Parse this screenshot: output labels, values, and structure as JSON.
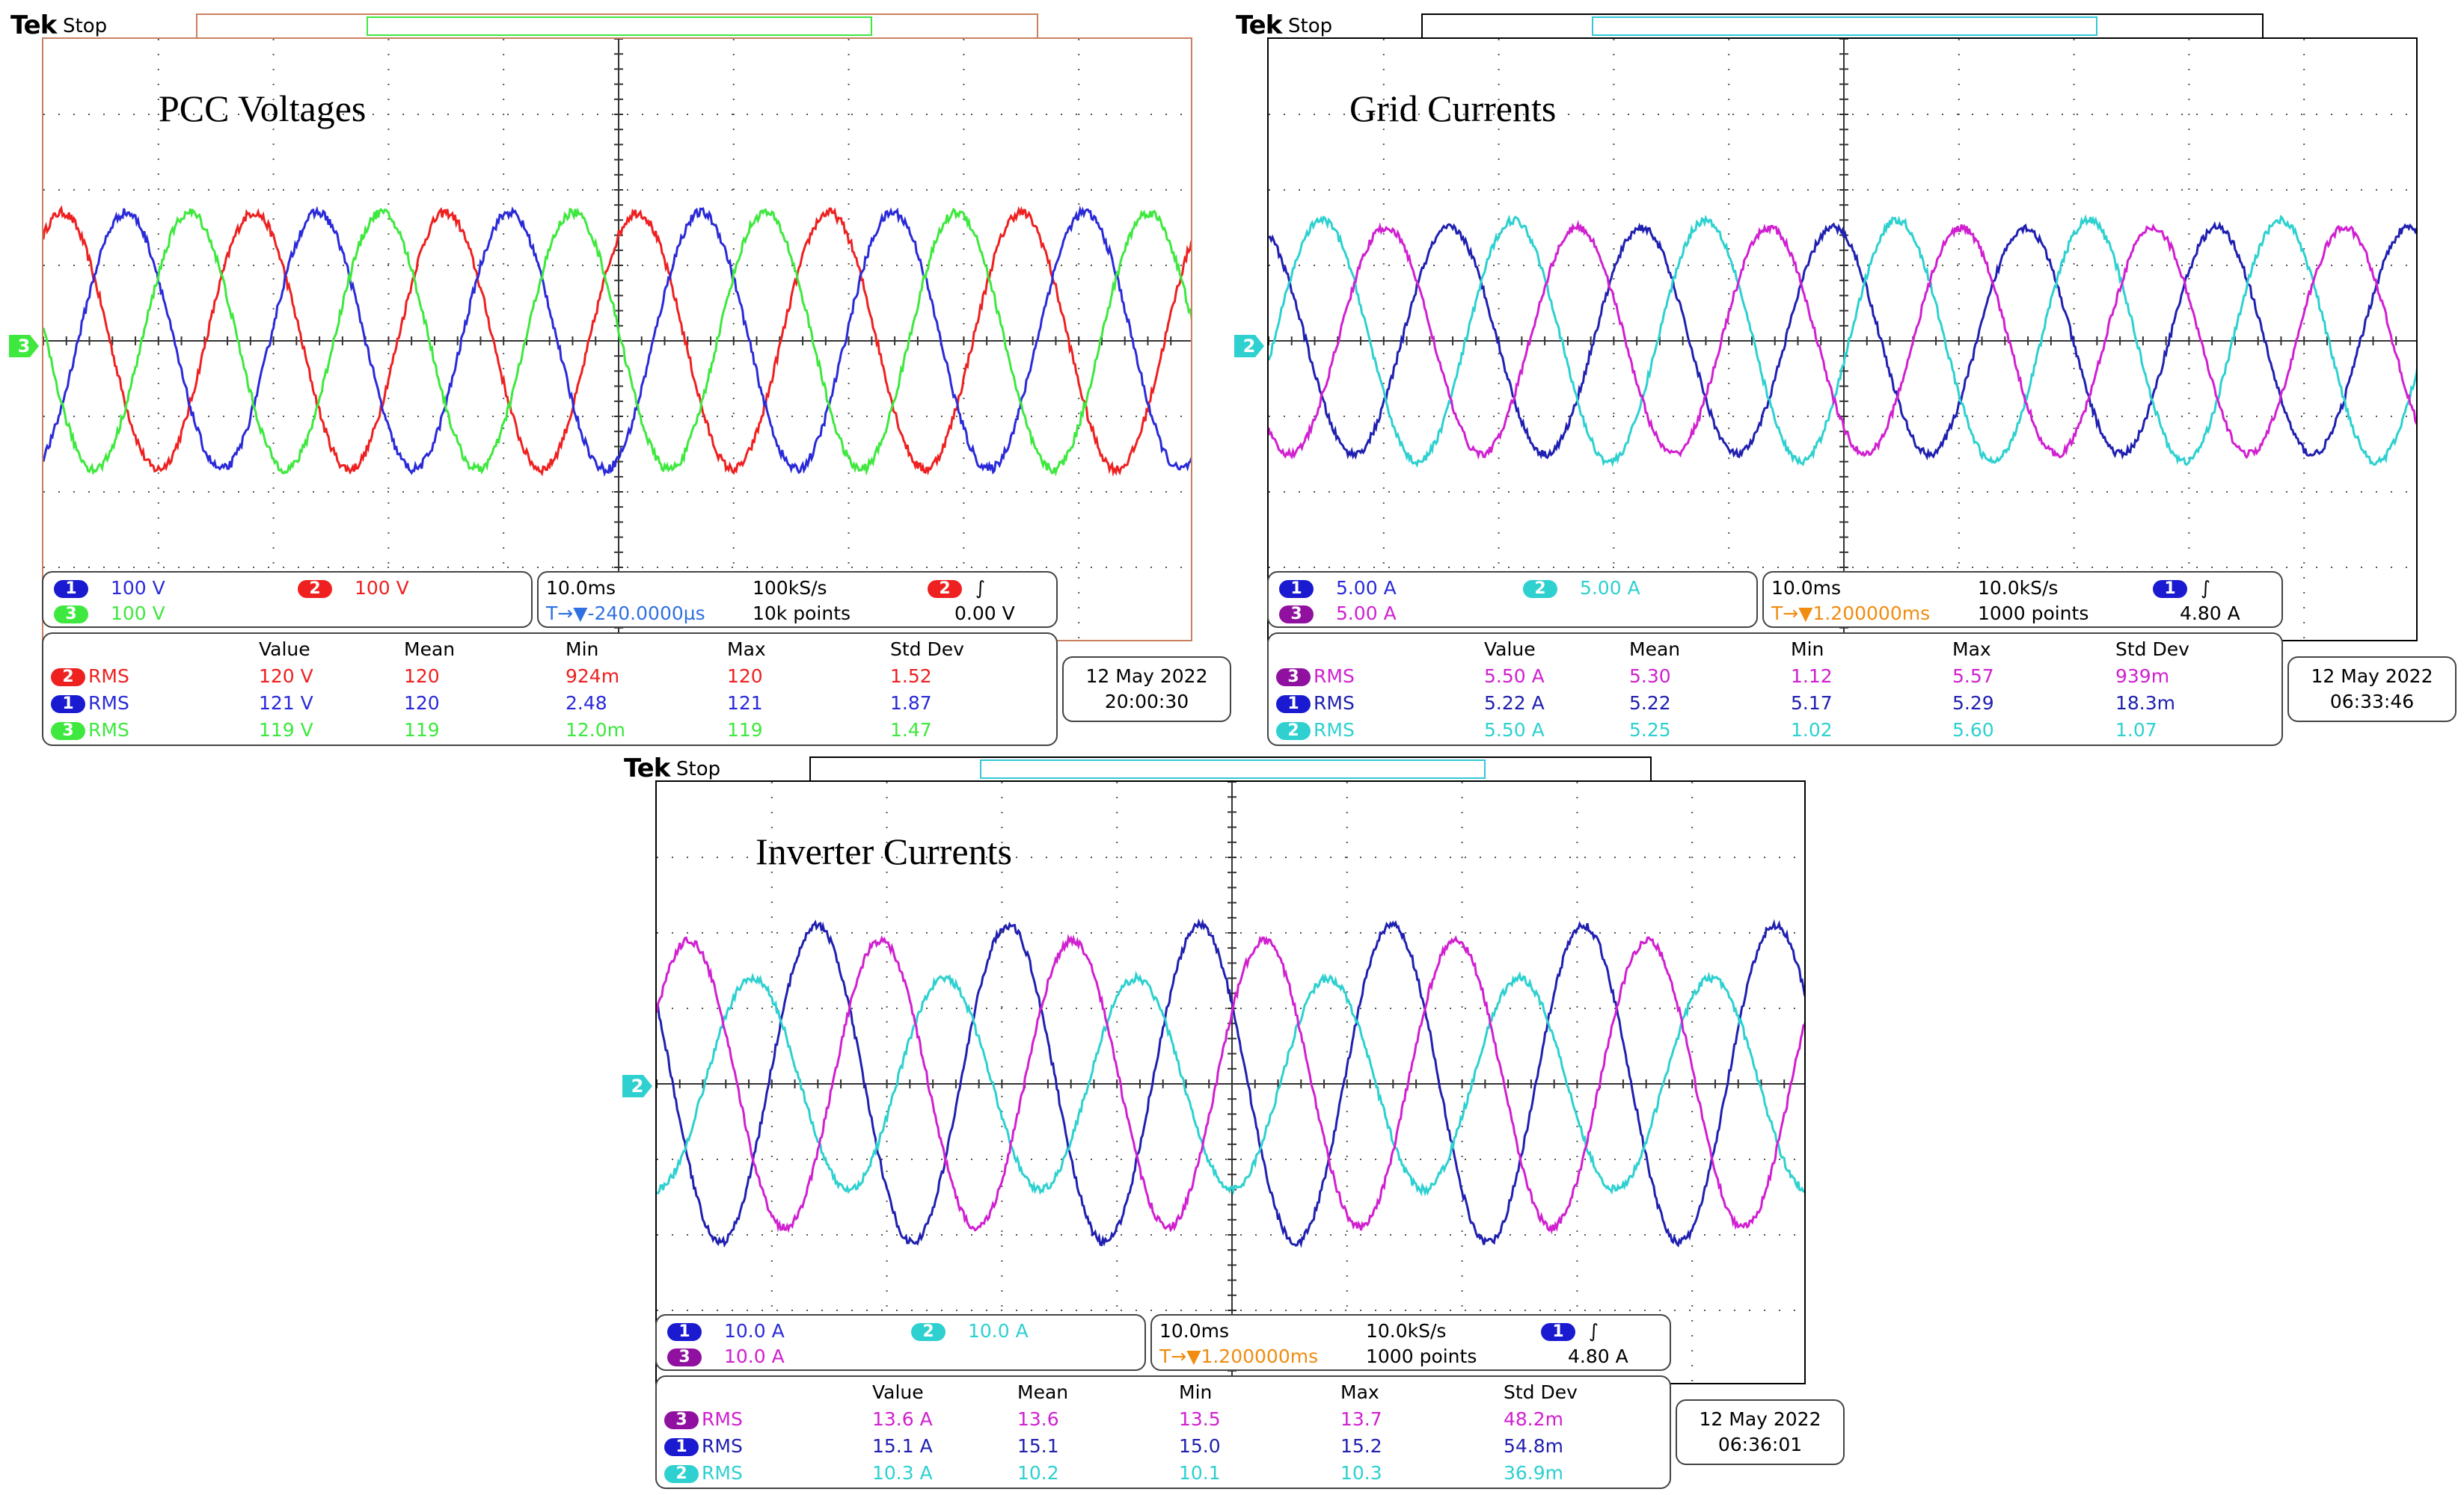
{
  "colors": {
    "ch1": "#2a2ad8",
    "ch1_badge": "#1a1ad0",
    "red": "#ee2020",
    "green": "#3ee83e",
    "cyan": "#2ed0d0",
    "magenta": "#d020d0",
    "navy": "#2020b0",
    "purple_badge": "#9010a0",
    "trigger_blue": "#3070e0",
    "trigger_orange": "#f08c10"
  },
  "scopes": [
    {
      "id": "pcc",
      "brand": "Tek",
      "status": "Stop",
      "title": "PCC Voltages",
      "ground_marker": "3",
      "trigger_marker": "T",
      "channels_line1": [
        {
          "num": "1",
          "scale": "100 V",
          "color": "#2a2ad8",
          "badge": "#1a1ad0"
        },
        {
          "num": "2",
          "scale": "100 V",
          "color": "#ee2020",
          "badge": "#ee2020"
        }
      ],
      "channels_line2": [
        {
          "num": "3",
          "scale": "100 V",
          "color": "#3ee83e",
          "badge": "#3ee83e"
        }
      ],
      "timebase": "10.0ms",
      "sample_rate": "100kS/s",
      "trigger_pos": "T→▼-240.0000µs",
      "record": "10k points",
      "trig_ch": "2",
      "trig_slope": "∫",
      "trig_level": "0.00 V",
      "headers": [
        "Value",
        "Mean",
        "Min",
        "Max",
        "Std Dev"
      ],
      "meas": [
        {
          "ch": "2",
          "label": "RMS",
          "values": [
            "120 V",
            "120",
            "924m",
            "120",
            "1.52"
          ]
        },
        {
          "ch": "1",
          "label": "RMS",
          "values": [
            "121 V",
            "120",
            "2.48",
            "121",
            "1.87"
          ]
        },
        {
          "ch": "3",
          "label": "RMS",
          "values": [
            "119 V",
            "119",
            "12.0m",
            "119",
            "1.47"
          ]
        }
      ],
      "date": "12 May  2022",
      "time": "20:00:30"
    },
    {
      "id": "grid",
      "brand": "Tek",
      "status": "Stop",
      "title": "Grid Currents",
      "ground_marker": "2",
      "trigger_marker": "T",
      "channels_line1": [
        {
          "num": "1",
          "scale": "5.00 A",
          "color": "#2020b0",
          "badge": "#1a1ad0"
        },
        {
          "num": "2",
          "scale": "5.00 A",
          "color": "#2ed0d0",
          "badge": "#2ed0d0"
        }
      ],
      "channels_line2": [
        {
          "num": "3",
          "scale": "5.00 A",
          "color": "#d020d0",
          "badge": "#9010a0"
        }
      ],
      "timebase": "10.0ms",
      "sample_rate": "10.0kS/s",
      "trigger_pos": "T→▼1.200000ms",
      "record": "1000 points",
      "trig_ch": "1",
      "trig_slope": "∫",
      "trig_level": "4.80 A",
      "headers": [
        "Value",
        "Mean",
        "Min",
        "Max",
        "Std Dev"
      ],
      "meas": [
        {
          "ch": "3",
          "label": "RMS",
          "values": [
            "5.50 A",
            "5.30",
            "1.12",
            "5.57",
            "939m"
          ]
        },
        {
          "ch": "1",
          "label": "RMS",
          "values": [
            "5.22 A",
            "5.22",
            "5.17",
            "5.29",
            "18.3m"
          ]
        },
        {
          "ch": "2",
          "label": "RMS",
          "values": [
            "5.50 A",
            "5.25",
            "1.02",
            "5.60",
            "1.07"
          ]
        }
      ],
      "date": "12 May  2022",
      "time": "06:33:46"
    },
    {
      "id": "inverter",
      "brand": "Tek",
      "status": "Stop",
      "title": "Inverter Currents",
      "ground_marker": "2",
      "trigger_marker": "T",
      "channels_line1": [
        {
          "num": "1",
          "scale": "10.0 A",
          "color": "#2020b0",
          "badge": "#1a1ad0"
        },
        {
          "num": "2",
          "scale": "10.0 A",
          "color": "#2ed0d0",
          "badge": "#2ed0d0"
        }
      ],
      "channels_line2": [
        {
          "num": "3",
          "scale": "10.0 A",
          "color": "#d020d0",
          "badge": "#9010a0"
        }
      ],
      "timebase": "10.0ms",
      "sample_rate": "10.0kS/s",
      "trigger_pos": "T→▼1.200000ms",
      "record": "1000 points",
      "trig_ch": "1",
      "trig_slope": "∫",
      "trig_level": "4.80 A",
      "headers": [
        "Value",
        "Mean",
        "Min",
        "Max",
        "Std Dev"
      ],
      "meas": [
        {
          "ch": "3",
          "label": "RMS",
          "values": [
            "13.6 A",
            "13.6",
            "13.5",
            "13.7",
            "48.2m"
          ]
        },
        {
          "ch": "1",
          "label": "RMS",
          "values": [
            "15.1 A",
            "15.1",
            "15.0",
            "15.2",
            "54.8m"
          ]
        },
        {
          "ch": "2",
          "label": "RMS",
          "values": [
            "10.3 A",
            "10.2",
            "10.1",
            "10.3",
            "36.9m"
          ]
        }
      ],
      "date": "12 May  2022",
      "time": "06:36:01"
    }
  ],
  "chart_data": [
    {
      "type": "line",
      "title": "PCC Voltages",
      "x_unit": "divisions (10.0ms/div)",
      "xlim": [
        0,
        10
      ],
      "ylim": [
        -4,
        4
      ],
      "grid": true,
      "series": [
        {
          "name": "Ch2",
          "color": "#ee2020",
          "amplitude_div": 1.7,
          "cycles": 6,
          "phase_deg": 55,
          "noise": 0.06
        },
        {
          "name": "Ch1",
          "color": "#2a2ad8",
          "amplitude_div": 1.7,
          "cycles": 6,
          "phase_deg": -65,
          "noise": 0.06
        },
        {
          "name": "Ch3",
          "color": "#3ee83e",
          "amplitude_div": 1.7,
          "cycles": 6,
          "phase_deg": 175,
          "noise": 0.06
        }
      ]
    },
    {
      "type": "line",
      "title": "Grid Currents",
      "x_unit": "divisions (10.0ms/div)",
      "xlim": [
        0,
        10
      ],
      "ylim": [
        -4,
        4
      ],
      "grid": true,
      "series": [
        {
          "name": "Ch1",
          "color": "#2020b0",
          "amplitude_div": 1.5,
          "cycles": 6,
          "phase_deg": 110,
          "noise": 0.05
        },
        {
          "name": "Ch2",
          "color": "#2ed0d0",
          "amplitude_div": 1.6,
          "cycles": 6,
          "phase_deg": -10,
          "noise": 0.05
        },
        {
          "name": "Ch3",
          "color": "#d020d0",
          "amplitude_div": 1.5,
          "cycles": 6,
          "phase_deg": 230,
          "noise": 0.05
        }
      ]
    },
    {
      "type": "line",
      "title": "Inverter Currents",
      "x_unit": "divisions (10.0ms/div)",
      "xlim": [
        0,
        10
      ],
      "ylim": [
        -4,
        4
      ],
      "grid": true,
      "series": [
        {
          "name": "Ch1",
          "color": "#2020b0",
          "amplitude_div": 2.1,
          "cycles": 6,
          "phase_deg": 150,
          "noise": 0.05
        },
        {
          "name": "Ch2",
          "color": "#2ed0d0",
          "amplitude_div": 1.4,
          "cycles": 6,
          "phase_deg": -90,
          "noise": 0.05
        },
        {
          "name": "Ch3",
          "color": "#d020d0",
          "amplitude_div": 1.9,
          "cycles": 6,
          "phase_deg": 30,
          "noise": 0.05
        }
      ]
    }
  ]
}
